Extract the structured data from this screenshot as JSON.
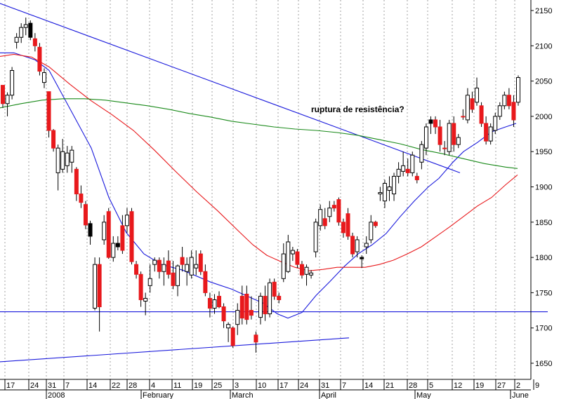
{
  "chart_data": {
    "type": "candlestick",
    "title": "",
    "annotation": "ruptura de resistência?",
    "colors": {
      "up_candle": "#ffffff",
      "down_candle": "#e8191c",
      "black_candle": "#000000",
      "ma_short": "#1a1adc",
      "ma_medium": "#e8191c",
      "ma_long": "#1a8a1a",
      "trendline": "#1a1adc",
      "grid": "#a0a0a0"
    },
    "grid": "vertical-dotted",
    "y_axis": {
      "position": "right",
      "ylim": [
        1625,
        2175
      ],
      "ticks": [
        2150,
        2100,
        2050,
        2000,
        1950,
        1900,
        1850,
        1800,
        1750,
        1700,
        1650
      ]
    },
    "x_axis": {
      "day_labels": [
        "17",
        "24",
        "31",
        "7",
        "14",
        "22",
        "28",
        "4",
        "11",
        "19",
        "25",
        "3",
        "10",
        "17",
        "24",
        "31",
        "7",
        "14",
        "21",
        "28",
        "5",
        "12",
        "19",
        "27",
        "2",
        "9"
      ],
      "month_labels": [
        {
          "label": "2008",
          "day_index": 2
        },
        {
          "label": "February",
          "day_index": 6
        },
        {
          "label": "March",
          "day_index": 10
        },
        {
          "label": "April",
          "day_index": 15
        },
        {
          "label": "May",
          "day_index": 20
        },
        {
          "label": "June",
          "day_index": 25
        }
      ],
      "date_range": [
        "2007-12-14",
        "2008-06-05"
      ]
    },
    "candles": [
      [
        1.0,
        2044,
        2040,
        2012,
        2018,
        "down"
      ],
      [
        1.0,
        2018,
        2034,
        2000,
        2030,
        "up"
      ],
      [
        1.0,
        2030,
        2070,
        2024,
        2065,
        "up"
      ],
      [
        1.0,
        2105,
        2118,
        2096,
        2112,
        "up"
      ],
      [
        1.0,
        2112,
        2132,
        2104,
        2126,
        "up"
      ],
      [
        1.0,
        2126,
        2140,
        2115,
        2130,
        "up"
      ],
      [
        1.0,
        2132,
        2136,
        2108,
        2112,
        "black"
      ],
      [
        1.0,
        2110,
        2118,
        2092,
        2100,
        "down"
      ],
      [
        1.0,
        2098,
        2104,
        2058,
        2064,
        "down"
      ],
      [
        1.0,
        2062,
        2068,
        2040,
        2048,
        "up"
      ],
      [
        1.0,
        2035,
        2032,
        1970,
        1980,
        "down"
      ],
      [
        1.0,
        1980,
        1982,
        1950,
        1955,
        "down"
      ],
      [
        1.0,
        1955,
        1960,
        1895,
        1920,
        "up"
      ],
      [
        1.0,
        1925,
        1968,
        1920,
        1950,
        "up"
      ],
      [
        1.0,
        1948,
        1958,
        1920,
        1930,
        "up"
      ],
      [
        1.0,
        1935,
        1958,
        1920,
        1952,
        "up"
      ],
      [
        1.0,
        1925,
        1928,
        1880,
        1890,
        "down"
      ],
      [
        1.0,
        1890,
        1902,
        1870,
        1878,
        "down"
      ],
      [
        1.0,
        1875,
        1880,
        1840,
        1846,
        "down"
      ],
      [
        1.0,
        1848,
        1852,
        1818,
        1830,
        "black"
      ],
      [
        1.0,
        1790,
        1800,
        1725,
        1728,
        "up"
      ],
      [
        1.0,
        1790,
        1800,
        1695,
        1730,
        "down"
      ],
      [
        1.0,
        1825,
        1860,
        1818,
        1850,
        "up"
      ],
      [
        1.0,
        1865,
        1870,
        1798,
        1800,
        "down"
      ],
      [
        1.0,
        1800,
        1830,
        1794,
        1820,
        "up"
      ],
      [
        1.0,
        1820,
        1830,
        1810,
        1815,
        "black"
      ],
      [
        1.0,
        1845,
        1860,
        1805,
        1810,
        "down"
      ],
      [
        1.0,
        1845,
        1870,
        1835,
        1860,
        "up"
      ],
      [
        1.0,
        1865,
        1870,
        1790,
        1794,
        "down"
      ],
      [
        1.0,
        1790,
        1795,
        1770,
        1776,
        "down"
      ],
      [
        1.0,
        1776,
        1780,
        1730,
        1740,
        "down"
      ],
      [
        1.0,
        1738,
        1750,
        1718,
        1742,
        "up"
      ],
      [
        1.0,
        1760,
        1790,
        1750,
        1770,
        "up"
      ],
      [
        1.0,
        1790,
        1800,
        1780,
        1796,
        "up"
      ],
      [
        1.0,
        1796,
        1800,
        1770,
        1780,
        "down"
      ],
      [
        1.0,
        1780,
        1800,
        1760,
        1790,
        "up"
      ],
      [
        1.0,
        1795,
        1810,
        1770,
        1776,
        "down"
      ],
      [
        1.0,
        1778,
        1795,
        1755,
        1760,
        "down"
      ],
      [
        1.0,
        1760,
        1790,
        1745,
        1788,
        "up"
      ],
      [
        1.0,
        1800,
        1815,
        1780,
        1790,
        "down"
      ],
      [
        1.0,
        1790,
        1800,
        1760,
        1780,
        "up"
      ],
      [
        1.0,
        1775,
        1810,
        1770,
        1800,
        "up"
      ],
      [
        1.0,
        1790,
        1810,
        1775,
        1785,
        "up"
      ],
      [
        1.0,
        1805,
        1810,
        1775,
        1780,
        "down"
      ],
      [
        1.0,
        1780,
        1790,
        1745,
        1750,
        "down"
      ],
      [
        1.0,
        1742,
        1750,
        1715,
        1728,
        "down"
      ],
      [
        1.0,
        1728,
        1748,
        1720,
        1740,
        "up"
      ],
      [
        1.0,
        1745,
        1752,
        1728,
        1730,
        "down"
      ],
      [
        1.0,
        1730,
        1735,
        1700,
        1710,
        "down"
      ],
      [
        1.0,
        1700,
        1708,
        1680,
        1705,
        "up"
      ],
      [
        1.0,
        1700,
        1702,
        1672,
        1675,
        "down"
      ],
      [
        1.0,
        1705,
        1735,
        1690,
        1725,
        "up"
      ],
      [
        1.0,
        1745,
        1760,
        1705,
        1714,
        "down"
      ],
      [
        1.0,
        1748,
        1760,
        1705,
        1712,
        "down"
      ],
      [
        1.0,
        1725,
        1745,
        1712,
        1718,
        "down"
      ],
      [
        1.0,
        1690,
        1695,
        1665,
        1680,
        "down"
      ],
      [
        1.0,
        1715,
        1750,
        1705,
        1745,
        "up"
      ],
      [
        1.0,
        1745,
        1760,
        1710,
        1720,
        "down"
      ],
      [
        1.0,
        1720,
        1770,
        1715,
        1764,
        "up"
      ],
      [
        1.0,
        1765,
        1770,
        1740,
        1745,
        "down"
      ],
      [
        1.0,
        1745,
        1750,
        1735,
        1740,
        "down"
      ],
      [
        1.0,
        1805,
        1820,
        1765,
        1770,
        "up"
      ],
      [
        1.0,
        1780,
        1832,
        1778,
        1822,
        "up"
      ],
      [
        1.0,
        1810,
        1815,
        1795,
        1805,
        "up"
      ],
      [
        1.0,
        1808,
        1812,
        1785,
        1790,
        "down"
      ],
      [
        1.0,
        1790,
        1795,
        1770,
        1775,
        "down"
      ],
      [
        1.0,
        1786,
        1790,
        1760,
        1776,
        "up"
      ],
      [
        1.0,
        1775,
        1782,
        1770,
        1778,
        "up"
      ],
      [
        1.0,
        1808,
        1855,
        1800,
        1850,
        "up"
      ],
      [
        1.0,
        1845,
        1875,
        1838,
        1868,
        "up"
      ],
      [
        1.0,
        1855,
        1870,
        1840,
        1845,
        "down"
      ],
      [
        1.0,
        1870,
        1880,
        1850,
        1858,
        "up"
      ],
      [
        1.0,
        1870,
        1880,
        1865,
        1874,
        "down"
      ],
      [
        1.0,
        1882,
        1885,
        1845,
        1850,
        "down"
      ],
      [
        1.0,
        1850,
        1855,
        1828,
        1835,
        "down"
      ],
      [
        1.0,
        1862,
        1870,
        1825,
        1830,
        "down"
      ],
      [
        1.0,
        1830,
        1835,
        1800,
        1805,
        "down"
      ],
      [
        1.0,
        1808,
        1830,
        1800,
        1825,
        "up"
      ],
      [
        1.0,
        1800,
        1803,
        1785,
        1798,
        "black"
      ],
      [
        1.0,
        1820,
        1830,
        1805,
        1815,
        "up"
      ],
      [
        1.0,
        1850,
        1860,
        1820,
        1825,
        "up"
      ],
      [
        1.0,
        1850,
        1852,
        1842,
        1845,
        "down"
      ],
      [
        1.0,
        1892,
        1900,
        1880,
        1890,
        "up"
      ],
      [
        1.0,
        1880,
        1910,
        1870,
        1905,
        "up"
      ],
      [
        1.0,
        1895,
        1915,
        1880,
        1900,
        "up"
      ],
      [
        1.0,
        1915,
        1920,
        1880,
        1890,
        "up"
      ],
      [
        1.0,
        1915,
        1935,
        1905,
        1925,
        "up"
      ],
      [
        1.0,
        1930,
        1950,
        1915,
        1922,
        "up"
      ],
      [
        1.0,
        1925,
        1940,
        1915,
        1920,
        "down"
      ],
      [
        1.0,
        1920,
        1950,
        1915,
        1945,
        "up"
      ],
      [
        1.0,
        1915,
        1920,
        1905,
        1910,
        "down"
      ],
      [
        1.0,
        1935,
        1965,
        1925,
        1960,
        "up"
      ],
      [
        1.0,
        1955,
        1990,
        1945,
        1985,
        "up"
      ],
      [
        1.0,
        1990,
        2000,
        1975,
        1995,
        "black"
      ],
      [
        1.0,
        1995,
        2000,
        1975,
        1985,
        "down"
      ],
      [
        1.0,
        1985,
        1995,
        1950,
        1960,
        "down"
      ],
      [
        1.0,
        1955,
        1965,
        1945,
        1955,
        "down"
      ],
      [
        1.0,
        1950,
        1995,
        1945,
        1990,
        "up"
      ],
      [
        1.0,
        1990,
        2000,
        1950,
        1960,
        "down"
      ],
      [
        1.0,
        1960,
        1975,
        1955,
        1970,
        "up"
      ],
      [
        1.0,
        2000,
        2010,
        1995,
        2000,
        "down"
      ],
      [
        1.0,
        1995,
        2040,
        1990,
        2030,
        "up"
      ],
      [
        1.0,
        2025,
        2035,
        2005,
        2010,
        "down"
      ],
      [
        1.0,
        2020,
        2055,
        2015,
        2040,
        "up"
      ],
      [
        1.0,
        2015,
        2020,
        1985,
        1990,
        "down"
      ],
      [
        1.0,
        1990,
        2000,
        1960,
        1965,
        "down"
      ],
      [
        1.0,
        1965,
        1990,
        1960,
        1985,
        "up"
      ],
      [
        1.0,
        1980,
        2005,
        1975,
        2000,
        "up"
      ],
      [
        1.0,
        2000,
        2020,
        1995,
        2015,
        "up"
      ],
      [
        1.0,
        2015,
        2035,
        2010,
        2030,
        "up"
      ],
      [
        1.0,
        2030,
        2040,
        2010,
        2015,
        "down"
      ],
      [
        1.0,
        2020,
        2030,
        1985,
        1995,
        "down"
      ],
      [
        1.0,
        2020,
        2058,
        2015,
        2055,
        "up"
      ]
    ],
    "series": [
      {
        "name": "",
        "role": "ma_short",
        "color": "#1a1adc",
        "points": [
          [
            0,
            2090
          ],
          [
            20,
            2090
          ],
          [
            35,
            2085
          ],
          [
            50,
            2080
          ],
          [
            70,
            2065
          ],
          [
            100,
            2010
          ],
          [
            130,
            1955
          ],
          [
            155,
            1885
          ],
          [
            180,
            1835
          ],
          [
            205,
            1805
          ],
          [
            230,
            1790
          ],
          [
            260,
            1782
          ],
          [
            300,
            1765
          ],
          [
            330,
            1755
          ],
          [
            350,
            1746
          ],
          [
            375,
            1735
          ],
          [
            395,
            1720
          ],
          [
            410,
            1714
          ],
          [
            430,
            1722
          ],
          [
            450,
            1746
          ],
          [
            470,
            1766
          ],
          [
            490,
            1787
          ],
          [
            510,
            1805
          ],
          [
            530,
            1818
          ],
          [
            550,
            1834
          ],
          [
            570,
            1858
          ],
          [
            590,
            1880
          ],
          [
            610,
            1900
          ],
          [
            625,
            1912
          ],
          [
            645,
            1935
          ],
          [
            660,
            1950
          ],
          [
            680,
            1963
          ],
          [
            700,
            1978
          ],
          [
            720,
            1985
          ],
          [
            735,
            1990
          ]
        ]
      },
      {
        "name": "",
        "role": "ma_medium",
        "color": "#e8191c",
        "points": [
          [
            0,
            2085
          ],
          [
            20,
            2088
          ],
          [
            45,
            2084
          ],
          [
            70,
            2070
          ],
          [
            100,
            2045
          ],
          [
            130,
            2022
          ],
          [
            160,
            2002
          ],
          [
            190,
            1980
          ],
          [
            220,
            1952
          ],
          [
            250,
            1922
          ],
          [
            280,
            1893
          ],
          [
            310,
            1866
          ],
          [
            340,
            1837
          ],
          [
            360,
            1818
          ],
          [
            380,
            1803
          ],
          [
            400,
            1794
          ],
          [
            420,
            1786
          ],
          [
            440,
            1781
          ],
          [
            460,
            1783
          ],
          [
            480,
            1786
          ],
          [
            500,
            1786
          ],
          [
            520,
            1786
          ],
          [
            540,
            1790
          ],
          [
            560,
            1796
          ],
          [
            580,
            1805
          ],
          [
            600,
            1815
          ],
          [
            620,
            1829
          ],
          [
            640,
            1843
          ],
          [
            660,
            1858
          ],
          [
            680,
            1873
          ],
          [
            700,
            1885
          ],
          [
            720,
            1903
          ],
          [
            737,
            1917
          ]
        ]
      },
      {
        "name": "",
        "role": "ma_long",
        "color": "#1a8a1a",
        "points": [
          [
            0,
            2012
          ],
          [
            30,
            2018
          ],
          [
            60,
            2023
          ],
          [
            90,
            2025
          ],
          [
            120,
            2025
          ],
          [
            150,
            2023
          ],
          [
            180,
            2019
          ],
          [
            210,
            2015
          ],
          [
            240,
            2010
          ],
          [
            270,
            2004
          ],
          [
            300,
            1999
          ],
          [
            330,
            1993
          ],
          [
            360,
            1989
          ],
          [
            390,
            1985
          ],
          [
            420,
            1982
          ],
          [
            450,
            1980
          ],
          [
            480,
            1977
          ],
          [
            510,
            1973
          ],
          [
            540,
            1967
          ],
          [
            570,
            1961
          ],
          [
            600,
            1953
          ],
          [
            630,
            1947
          ],
          [
            660,
            1940
          ],
          [
            690,
            1933
          ],
          [
            720,
            1928
          ],
          [
            737,
            1926
          ]
        ]
      }
    ],
    "trendlines": [
      {
        "role": "descending-resistance",
        "points": [
          [
            0,
            2160
          ],
          [
            655,
            1920
          ]
        ]
      },
      {
        "role": "rising-support",
        "points": [
          [
            0,
            1652
          ],
          [
            497,
            1686
          ]
        ]
      },
      {
        "role": "horizontal-support",
        "points": [
          [
            0,
            1723
          ],
          [
            780,
            1723
          ]
        ]
      }
    ]
  }
}
